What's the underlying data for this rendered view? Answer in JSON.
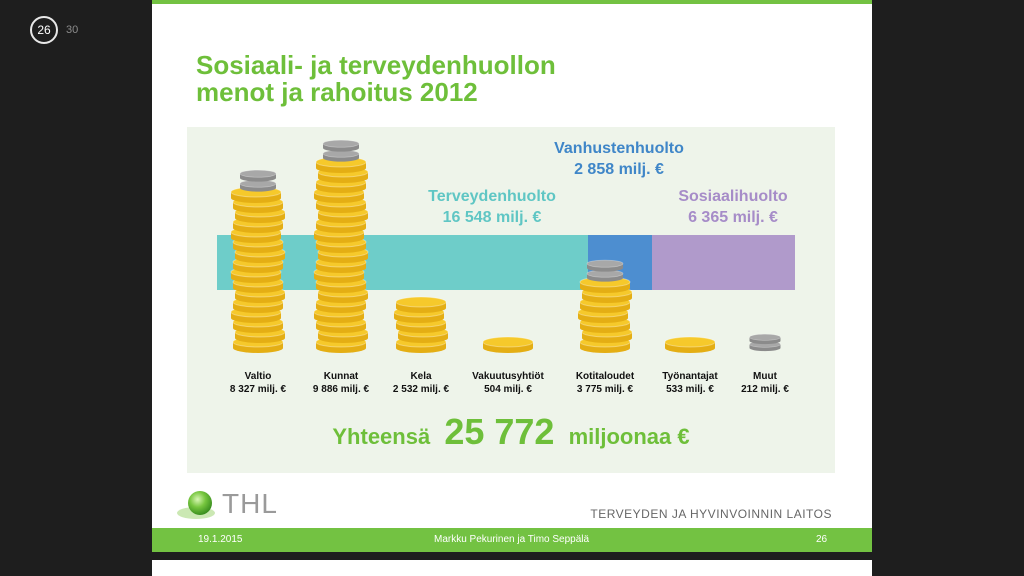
{
  "viewer": {
    "current_page": "26",
    "total_pages": "30"
  },
  "slide": {
    "title_line1": "Sosiaali- ja terveydenhuollon",
    "title_line2": "menot ja rahoitus 2012",
    "categories": [
      {
        "name": "Terveydenhuolto",
        "amount": "16 548 milj. €",
        "value_meur": 16548,
        "color": "#6ecdc9",
        "label_color": "#5fc6c4"
      },
      {
        "name": "Vanhustenhuolto",
        "amount": "2 858 milj. €",
        "value_meur": 2858,
        "color": "#4d8ed0",
        "label_color": "#3f86c8"
      },
      {
        "name": "Sosiaalihuolto",
        "amount": "6 365 milj. €",
        "value_meur": 6365,
        "color": "#b09acb",
        "label_color": "#a68cc8"
      }
    ],
    "funders": [
      {
        "name": "Valtio",
        "amount": "8 327 milj. €",
        "value_meur": 8327
      },
      {
        "name": "Kunnat",
        "amount": "9 886 milj. €",
        "value_meur": 9886
      },
      {
        "name": "Kela",
        "amount": "2 532 milj. €",
        "value_meur": 2532
      },
      {
        "name": "Vakuutusyhtiöt",
        "amount": "504 milj. €",
        "value_meur": 504
      },
      {
        "name": "Kotitaloudet",
        "amount": "3 775 milj. €",
        "value_meur": 3775
      },
      {
        "name": "Työnantajat",
        "amount": "533 milj. €",
        "value_meur": 533
      },
      {
        "name": "Muut",
        "amount": "212 milj. €",
        "value_meur": 212
      }
    ],
    "total_prefix": "Yhteensä",
    "total_value": "25 772",
    "total_suffix": "miljoonaa €",
    "logo_text": "THL",
    "org_name": "TERVEYDEN JA HYVINVOINNIN LAITOS",
    "footer": {
      "date": "19.1.2015",
      "authors": "Markku Pekurinen ja Timo Seppälä",
      "page": "26"
    },
    "colors": {
      "accent_green": "#73c242",
      "title_green": "#6ebf3a",
      "coin_gold": "#f6c92b",
      "coin_silver": "#a8a8a8"
    }
  }
}
